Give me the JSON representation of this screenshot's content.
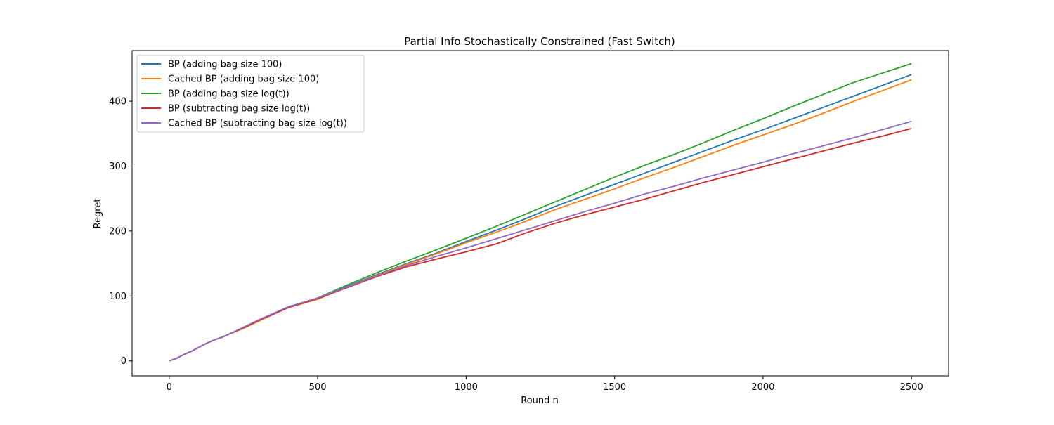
{
  "chart_data": {
    "type": "line",
    "title": "Partial Info Stochastically Constrained (Fast Switch)",
    "xlabel": "Round n",
    "ylabel": "Regret",
    "xlim": [
      -125,
      2625
    ],
    "ylim": [
      -23,
      478
    ],
    "xticks": [
      0,
      500,
      1000,
      1500,
      2000,
      2500
    ],
    "yticks": [
      0,
      100,
      200,
      300,
      400
    ],
    "grid": false,
    "legend_position": "upper-left",
    "series": [
      {
        "name": "BP (adding bag size 100)",
        "color": "#1f77b4",
        "x": [
          0,
          25,
          50,
          75,
          100,
          125,
          150,
          175,
          200,
          250,
          300,
          400,
          500,
          600,
          700,
          800,
          900,
          1000,
          1100,
          1200,
          1300,
          1400,
          1500,
          1600,
          1700,
          1800,
          1900,
          2000,
          2100,
          2200,
          2300,
          2400,
          2500
        ],
        "y": [
          0,
          4,
          10,
          15,
          21,
          27,
          32,
          36,
          41,
          51,
          62,
          83,
          96,
          115,
          133,
          150,
          166,
          184,
          201,
          219,
          238,
          255,
          272,
          289,
          306,
          323,
          340,
          356,
          373,
          390,
          407,
          424,
          441
        ]
      },
      {
        "name": "Cached BP (adding bag size 100)",
        "color": "#ff7f0e",
        "x": [
          0,
          25,
          50,
          75,
          100,
          125,
          150,
          175,
          200,
          250,
          300,
          400,
          500,
          600,
          700,
          800,
          900,
          1000,
          1100,
          1200,
          1300,
          1400,
          1500,
          1600,
          1700,
          1800,
          1900,
          2000,
          2100,
          2200,
          2300,
          2400,
          2500
        ],
        "y": [
          0,
          4,
          10,
          15,
          21,
          27,
          32,
          36,
          41,
          50,
          61,
          82,
          95,
          114,
          132,
          149,
          165,
          182,
          198,
          215,
          233,
          249,
          265,
          282,
          298,
          315,
          332,
          348,
          364,
          381,
          399,
          416,
          433
        ]
      },
      {
        "name": "BP (adding bag size log(t))",
        "color": "#2ca02c",
        "x": [
          0,
          25,
          50,
          75,
          100,
          125,
          150,
          175,
          200,
          250,
          300,
          400,
          500,
          600,
          700,
          800,
          900,
          1000,
          1100,
          1200,
          1300,
          1400,
          1500,
          1600,
          1700,
          1800,
          1900,
          2000,
          2100,
          2200,
          2300,
          2400,
          2500
        ],
        "y": [
          0,
          4,
          10,
          15,
          21,
          27,
          32,
          36,
          41,
          51,
          62,
          83,
          97,
          117,
          136,
          154,
          171,
          189,
          207,
          226,
          245,
          264,
          283,
          301,
          318,
          336,
          355,
          373,
          392,
          410,
          428,
          443,
          458
        ]
      },
      {
        "name": "BP (subtracting bag size log(t))",
        "color": "#d62728",
        "x": [
          0,
          25,
          50,
          75,
          100,
          125,
          150,
          175,
          200,
          250,
          300,
          400,
          500,
          600,
          700,
          800,
          900,
          1000,
          1100,
          1200,
          1300,
          1400,
          1500,
          1600,
          1700,
          1800,
          1900,
          2000,
          2100,
          2200,
          2300,
          2400,
          2500
        ],
        "y": [
          0,
          4,
          10,
          15,
          21,
          27,
          32,
          36,
          41,
          51,
          62,
          82,
          96,
          113,
          130,
          145,
          157,
          168,
          180,
          197,
          212,
          225,
          237,
          249,
          262,
          275,
          287,
          299,
          311,
          323,
          335,
          346,
          358
        ]
      },
      {
        "name": "Cached BP (subtracting bag size log(t))",
        "color": "#9467bd",
        "x": [
          0,
          25,
          50,
          75,
          100,
          125,
          150,
          175,
          200,
          250,
          300,
          400,
          500,
          600,
          700,
          800,
          900,
          1000,
          1100,
          1200,
          1300,
          1400,
          1500,
          1600,
          1700,
          1800,
          1900,
          2000,
          2100,
          2200,
          2300,
          2400,
          2500
        ],
        "y": [
          0,
          4,
          10,
          15,
          21,
          27,
          32,
          36,
          41,
          52,
          63,
          83,
          97,
          114,
          131,
          147,
          161,
          174,
          188,
          202,
          216,
          230,
          243,
          257,
          269,
          282,
          294,
          306,
          319,
          331,
          343,
          356,
          369
        ]
      }
    ]
  }
}
